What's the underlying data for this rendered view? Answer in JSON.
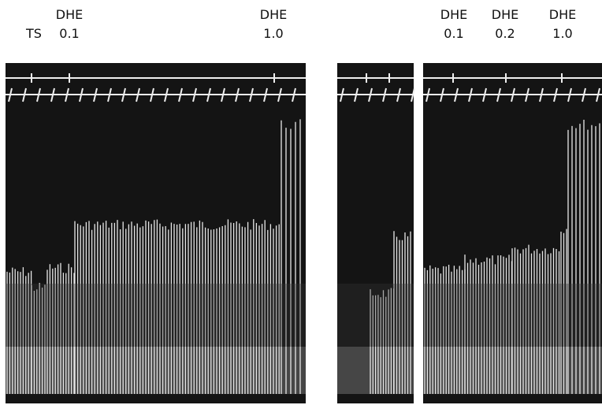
{
  "labels": [
    {
      "drug": "DHE",
      "dose": "0.1"
    },
    {
      "drug": "DHE",
      "dose": "1.0"
    },
    {
      "drug": "DHE",
      "dose": "0.1"
    },
    {
      "drug": "DHE",
      "dose": "0.2"
    },
    {
      "drug": "DHE",
      "dose": "1.0"
    }
  ],
  "stimulus_label": "TS"
}
